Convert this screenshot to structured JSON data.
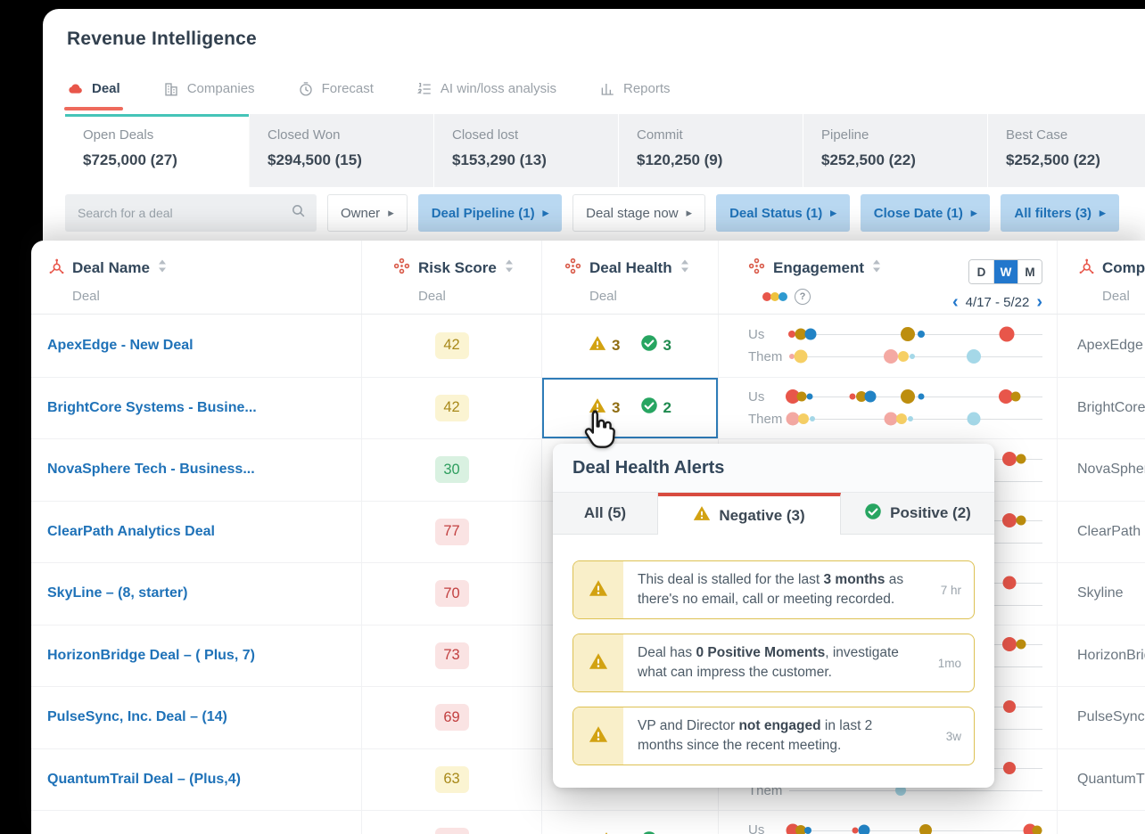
{
  "colors": {
    "accent_red": "#e8564a",
    "accent_blue": "#2277cc",
    "teal": "#45c4b8",
    "dots": {
      "red": "#e8564a",
      "olive": "#bd8e0e",
      "blue": "#2283c5",
      "pink": "#f4a9a3",
      "yellow": "#f6cf65",
      "lightblue": "#a5d8e8"
    },
    "legend": [
      "#e8564a",
      "#eec23e",
      "#2e9ad0"
    ]
  },
  "header": {
    "title": "Revenue Intelligence",
    "tabs": [
      {
        "label": "Deal",
        "icon": "deal-icon",
        "active": true
      },
      {
        "label": "Companies",
        "icon": "companies-icon",
        "active": false
      },
      {
        "label": "Forecast",
        "icon": "forecast-icon",
        "active": false
      },
      {
        "label": "AI win/loss analysis",
        "icon": "ai-icon",
        "active": false
      },
      {
        "label": "Reports",
        "icon": "reports-icon",
        "active": false
      }
    ]
  },
  "summary_cards": [
    {
      "label": "Open Deals",
      "value": "$725,000 (27)",
      "selected": true
    },
    {
      "label": "Closed Won",
      "value": "$294,500 (15)",
      "selected": false
    },
    {
      "label": "Closed lost",
      "value": "$153,290 (13)",
      "selected": false
    },
    {
      "label": "Commit",
      "value": "$120,250 (9)",
      "selected": false
    },
    {
      "label": "Pipeline",
      "value": "$252,500 (22)",
      "selected": false
    },
    {
      "label": "Best Case",
      "value": "$252,500 (22)",
      "selected": false
    }
  ],
  "filter_bar": {
    "search_placeholder": "Search for a deal",
    "chips": [
      {
        "label": "Owner",
        "highlighted": false
      },
      {
        "label": "Deal Pipeline (1)",
        "highlighted": true
      },
      {
        "label": "Deal stage now",
        "highlighted": false
      },
      {
        "label": "Deal Status (1)",
        "highlighted": true
      },
      {
        "label": "Close Date (1)",
        "highlighted": true
      },
      {
        "label": "All filters (3)",
        "highlighted": true
      }
    ]
  },
  "table": {
    "columns": {
      "deal_name": {
        "label": "Deal Name",
        "sublabel": "Deal"
      },
      "risk_score": {
        "label": "Risk Score",
        "sublabel": "Deal"
      },
      "deal_health": {
        "label": "Deal Health",
        "sublabel": "Deal"
      },
      "engagement": {
        "label": "Engagement"
      },
      "company": {
        "label": "Company",
        "sublabel": "Deal"
      }
    },
    "engagement_header": {
      "granularity": [
        "D",
        "W",
        "M"
      ],
      "selected_granularity": "W",
      "date_range": "4/17 - 5/22"
    },
    "eng_row_labels": {
      "us": "Us",
      "them": "Them"
    },
    "rows": [
      {
        "name": "ApexEdge - New Deal",
        "risk": {
          "value": "42",
          "tone": "yellow"
        },
        "health": {
          "negative": "3",
          "positive": "3"
        },
        "health_selected": false,
        "company": "ApexEdge",
        "eng": {
          "us": [
            [
              1,
              8,
              "red"
            ],
            [
              4.5,
              13,
              "olive"
            ],
            [
              8.5,
              13,
              "blue"
            ],
            [
              47,
              16,
              "olive"
            ],
            [
              52,
              8,
              "blue"
            ],
            [
              86,
              17,
              "red"
            ]
          ],
          "them": [
            [
              1,
              6,
              "pink"
            ],
            [
              4.5,
              15,
              "yellow"
            ],
            [
              40,
              16,
              "pink"
            ],
            [
              45,
              12,
              "yellow"
            ],
            [
              48.5,
              6,
              "lightblue"
            ],
            [
              73,
              16,
              "lightblue"
            ]
          ]
        }
      },
      {
        "name": "BrightCore Systems - Busine...",
        "risk": {
          "value": "42",
          "tone": "yellow"
        },
        "health": {
          "negative": "3",
          "positive": "2"
        },
        "health_selected": true,
        "company": "BrightCore",
        "eng": {
          "us": [
            [
              1.5,
              16,
              "red"
            ],
            [
              5,
              11,
              "olive"
            ],
            [
              8,
              7,
              "blue"
            ],
            [
              25,
              7,
              "red"
            ],
            [
              28.5,
              12,
              "olive"
            ],
            [
              32,
              13,
              "blue"
            ],
            [
              47,
              16,
              "olive"
            ],
            [
              52,
              7,
              "blue"
            ],
            [
              85.5,
              16,
              "red"
            ],
            [
              89.5,
              11,
              "olive"
            ]
          ],
          "them": [
            [
              1.5,
              15,
              "pink"
            ],
            [
              5.5,
              12,
              "yellow"
            ],
            [
              9,
              6,
              "lightblue"
            ],
            [
              40,
              15,
              "pink"
            ],
            [
              44.5,
              12,
              "yellow"
            ],
            [
              48,
              6,
              "lightblue"
            ],
            [
              73,
              15,
              "lightblue"
            ]
          ]
        }
      },
      {
        "name": "NovaSphere Tech - Business...",
        "risk": {
          "value": "30",
          "tone": "green"
        },
        "health": null,
        "health_selected": false,
        "company": "NovaSphere",
        "eng": {
          "us": [
            [
              87,
              16,
              "red"
            ],
            [
              91.5,
              11,
              "olive"
            ]
          ],
          "them": []
        }
      },
      {
        "name": "ClearPath Analytics Deal",
        "risk": {
          "value": "77",
          "tone": "red"
        },
        "health": null,
        "health_selected": false,
        "company": "ClearPath",
        "eng": {
          "us": [
            [
              87,
              16,
              "red"
            ],
            [
              91.5,
              11,
              "olive"
            ]
          ],
          "them": []
        }
      },
      {
        "name": "SkyLine – (8, starter)",
        "risk": {
          "value": "70",
          "tone": "red"
        },
        "health": null,
        "health_selected": false,
        "company": "Skyline",
        "eng": {
          "us": [
            [
              87,
              15,
              "red"
            ]
          ],
          "them": []
        }
      },
      {
        "name": "HorizonBridge Deal – ( Plus, 7)",
        "risk": {
          "value": "73",
          "tone": "red"
        },
        "health": null,
        "health_selected": false,
        "company": "HorizonBridge",
        "eng": {
          "us": [
            [
              87,
              16,
              "red"
            ],
            [
              91.5,
              11,
              "olive"
            ]
          ],
          "them": []
        }
      },
      {
        "name": "PulseSync, Inc. Deal – (14)",
        "risk": {
          "value": "69",
          "tone": "red"
        },
        "health": null,
        "health_selected": false,
        "company": "PulseSync",
        "eng": {
          "us": [
            [
              87,
              14,
              "red"
            ]
          ],
          "them": []
        }
      },
      {
        "name": "QuantumTrail Deal – (Plus,4)",
        "risk": {
          "value": "63",
          "tone": "yellow"
        },
        "health": null,
        "health_selected": false,
        "company": "QuantumTrail",
        "eng": {
          "us": [
            [
              87,
              14,
              "red"
            ]
          ],
          "them": [
            [
              44,
              12,
              "lightblue"
            ]
          ]
        }
      },
      {
        "name": "",
        "risk": {
          "value": "",
          "tone": "red"
        },
        "health": {
          "negative": "",
          "positive": ""
        },
        "health_selected": false,
        "company": "",
        "eng": {
          "us": [
            [
              1.5,
              15,
              "red"
            ],
            [
              4.5,
              12,
              "olive"
            ],
            [
              7.5,
              8,
              "blue"
            ],
            [
              26,
              7,
              "red"
            ],
            [
              29.5,
              13,
              "blue"
            ],
            [
              54,
              14,
              "olive"
            ],
            [
              95,
              15,
              "red"
            ],
            [
              98,
              11,
              "olive"
            ]
          ],
          "them": []
        }
      }
    ]
  },
  "popup": {
    "title": "Deal Health Alerts",
    "tabs": [
      {
        "label": "All (5)",
        "icon": null,
        "active": false
      },
      {
        "label": "Negative (3)",
        "icon": "warning-icon",
        "active": true
      },
      {
        "label": "Positive (2)",
        "icon": "check-icon",
        "active": false
      }
    ],
    "alerts": [
      {
        "segments": [
          {
            "text": "This deal is stalled for the last "
          },
          {
            "text": "3 months",
            "bold": true
          },
          {
            "text": " as there's no email, call or meeting recorded."
          }
        ],
        "time": "7 hr"
      },
      {
        "segments": [
          {
            "text": "Deal has "
          },
          {
            "text": "0 Positive Moments",
            "bold": true
          },
          {
            "text": ", investigate what can impress the customer."
          }
        ],
        "time": "1mo"
      },
      {
        "segments": [
          {
            "text": "VP and Director "
          },
          {
            "text": "not engaged",
            "bold": true
          },
          {
            "text": " in last 2 months since the recent meeting."
          }
        ],
        "time": "3w"
      }
    ]
  }
}
